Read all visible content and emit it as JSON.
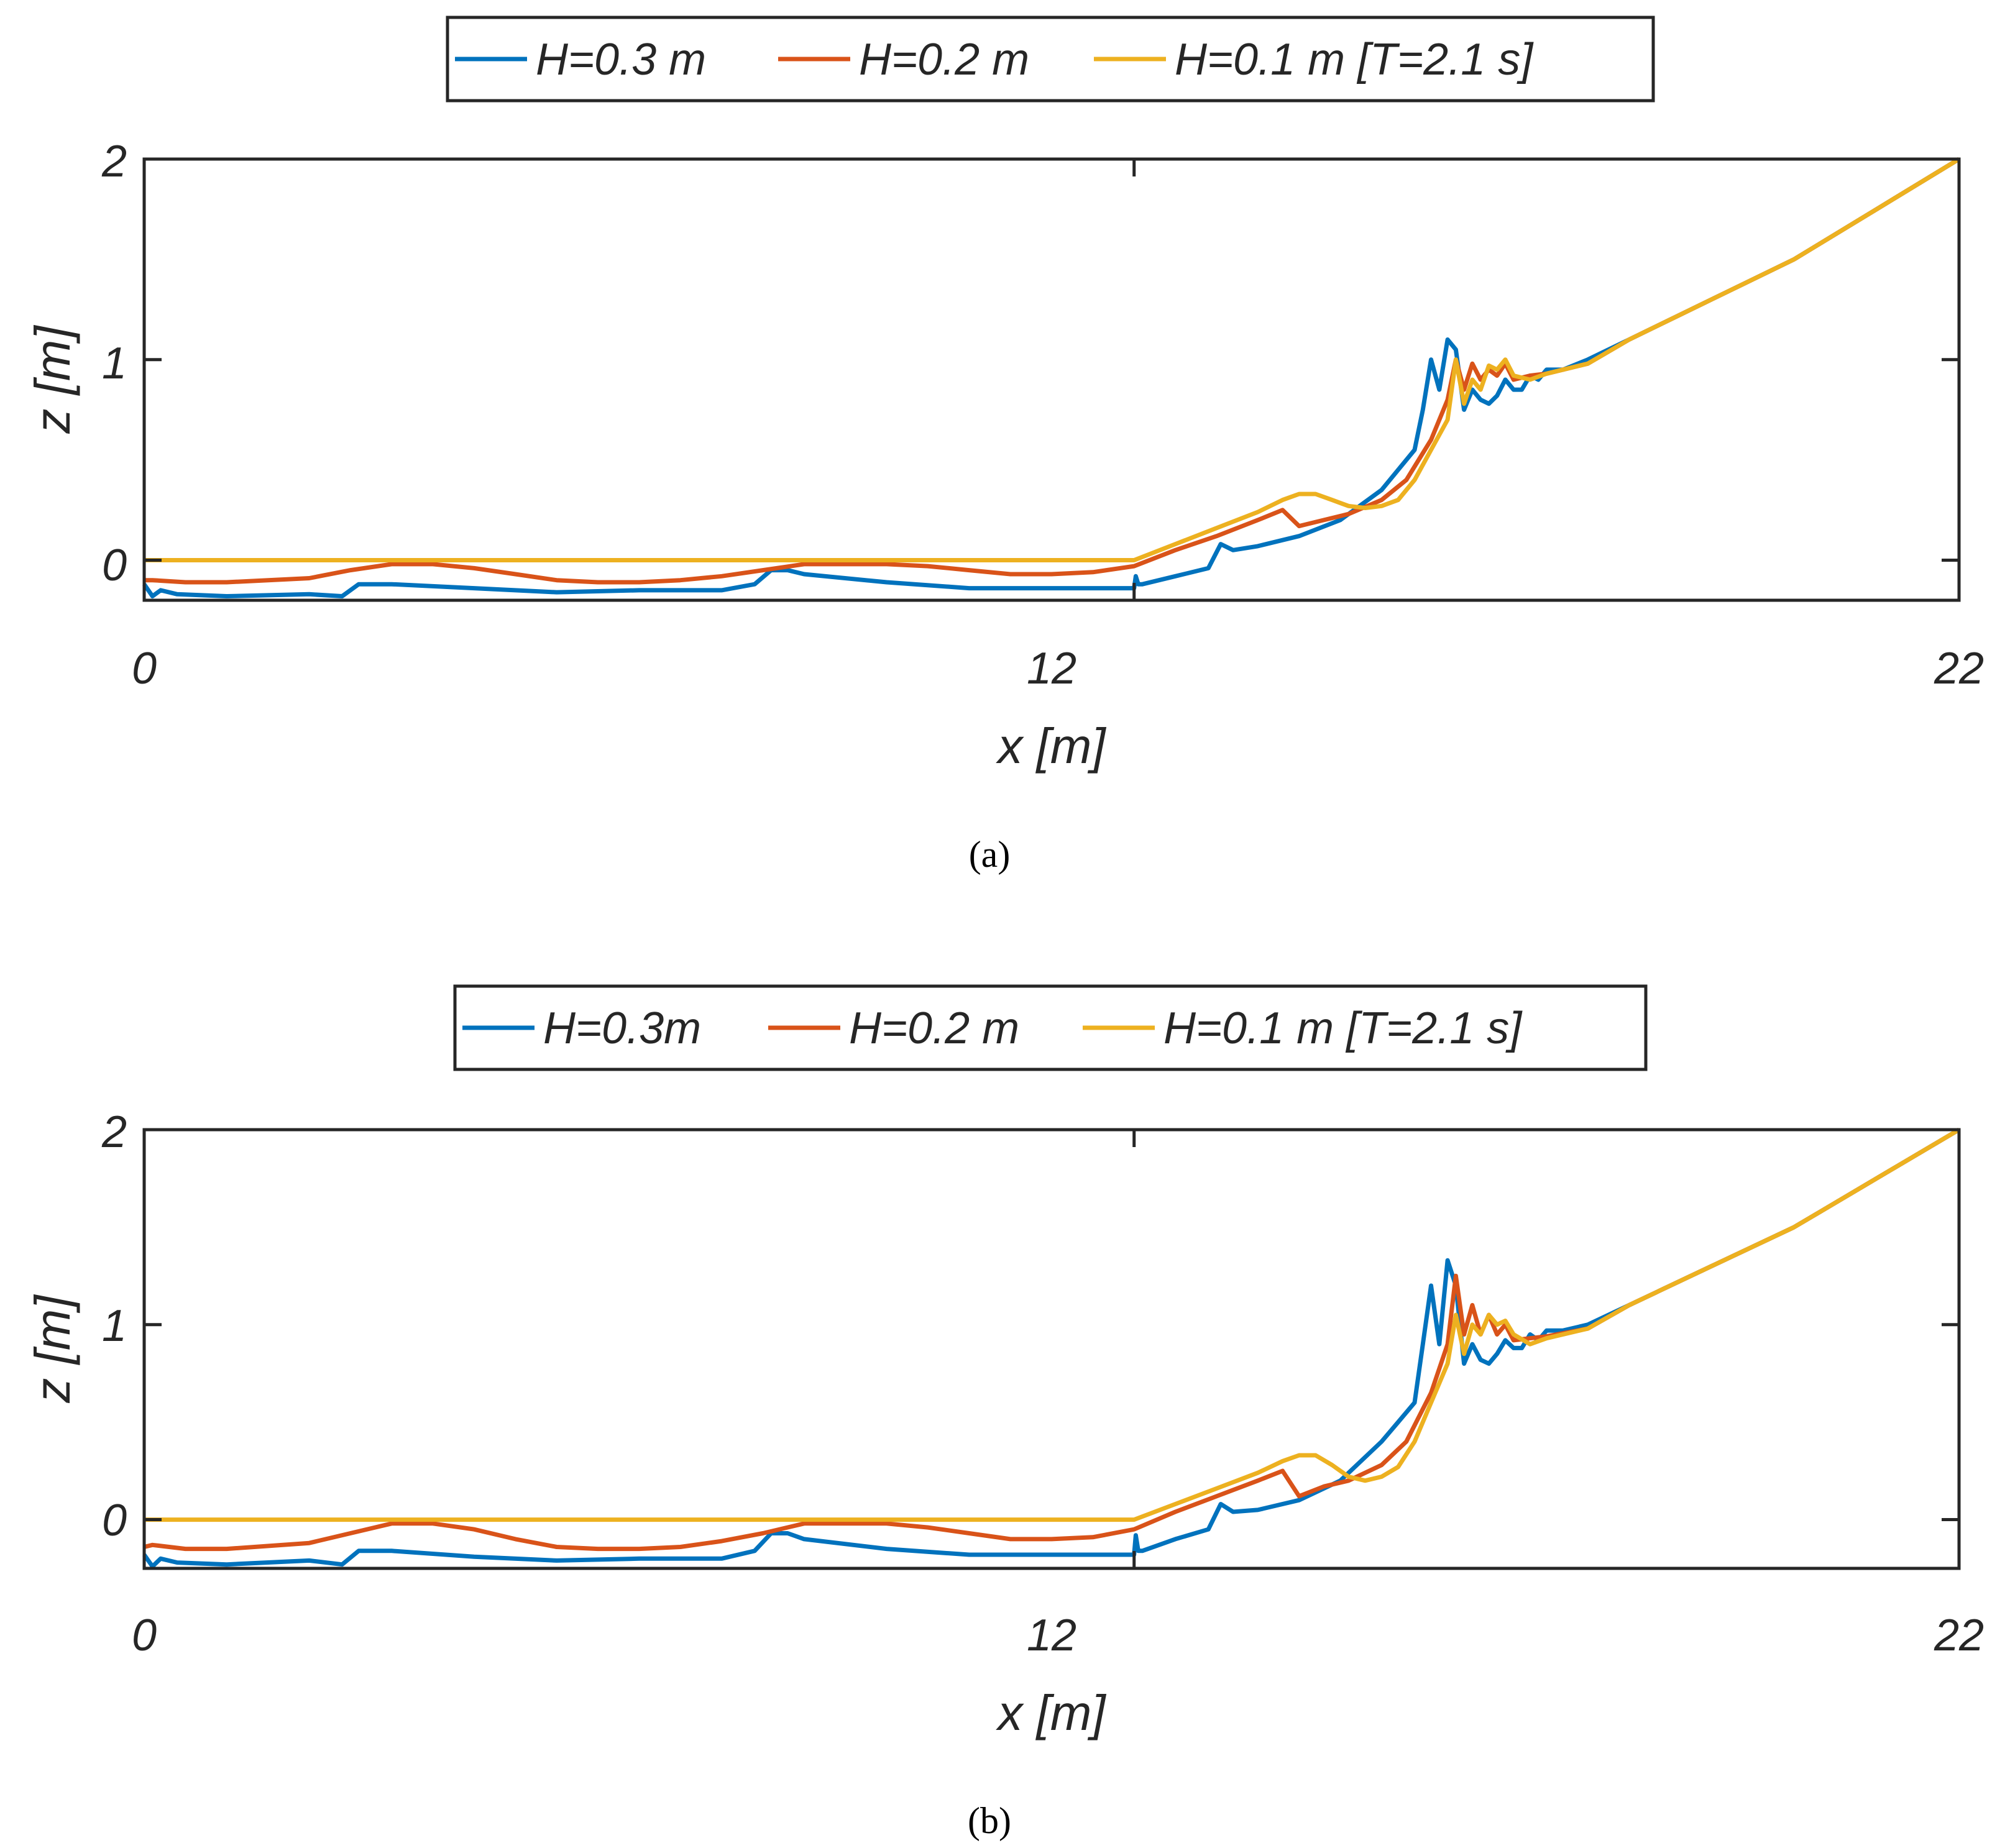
{
  "figure": {
    "colors": {
      "axes": "#262626",
      "series_1": "#0072BD",
      "series_2": "#D95319",
      "series_3": "#EDB120"
    }
  },
  "chart_data": [
    {
      "type": "line",
      "caption": "(a)",
      "xlabel": "x [m]",
      "ylabel": "z [m]",
      "xlim": [
        0,
        22
      ],
      "ylim": [
        -0.2,
        2
      ],
      "xticks": [
        0,
        12,
        22
      ],
      "yticks": [
        0,
        1,
        2
      ],
      "xtick_labels": [
        "0",
        "12",
        "22"
      ],
      "ytick_labels": [
        "0",
        "1",
        "2"
      ],
      "grid": false,
      "legend_position": "top-center",
      "series": [
        {
          "name": "H=0.3 m",
          "color": "#0072BD",
          "x": [
            0,
            0.1,
            0.2,
            0.4,
            1,
            2,
            2.4,
            2.6,
            3,
            4,
            5,
            6,
            7,
            7.4,
            7.6,
            7.8,
            8,
            9,
            10,
            11,
            12,
            12.02,
            12.05,
            12.1,
            12.5,
            12.9,
            13.05,
            13.2,
            13.5,
            14,
            14.5,
            15,
            15.2,
            15.4,
            15.5,
            15.6,
            15.7,
            15.8,
            15.9,
            16.0,
            16.1,
            16.2,
            16.3,
            16.4,
            16.5,
            16.6,
            16.7,
            16.8,
            16.9,
            17.0,
            17.2,
            17.5,
            18,
            19,
            20,
            21,
            22
          ],
          "values": [
            -0.12,
            -0.18,
            -0.15,
            -0.17,
            -0.18,
            -0.17,
            -0.18,
            -0.12,
            -0.12,
            -0.14,
            -0.16,
            -0.15,
            -0.15,
            -0.12,
            -0.05,
            -0.05,
            -0.07,
            -0.11,
            -0.14,
            -0.14,
            -0.14,
            -0.08,
            -0.12,
            -0.12,
            -0.08,
            -0.04,
            0.08,
            0.05,
            0.07,
            0.12,
            0.2,
            0.35,
            0.45,
            0.55,
            0.75,
            1.0,
            0.85,
            1.1,
            1.05,
            0.75,
            0.85,
            0.8,
            0.78,
            0.82,
            0.9,
            0.85,
            0.85,
            0.92,
            0.9,
            0.95,
            0.95,
            1.0,
            1.1,
            1.3,
            1.5,
            1.75,
            2.0
          ]
        },
        {
          "name": "H=0.2 m",
          "color": "#D95319",
          "x": [
            0,
            0.1,
            0.5,
            1,
            2,
            2.5,
            3,
            3.5,
            4,
            4.5,
            5,
            5.5,
            6,
            6.5,
            7,
            7.5,
            8,
            8.5,
            9,
            9.5,
            10,
            10.5,
            11,
            11.5,
            12,
            12.5,
            13,
            13.5,
            13.8,
            14.0,
            14.3,
            14.6,
            15.0,
            15.3,
            15.6,
            15.8,
            15.9,
            16.0,
            16.1,
            16.2,
            16.3,
            16.4,
            16.5,
            16.6,
            16.8,
            17.0,
            17.5,
            18,
            19,
            20,
            21,
            22
          ],
          "values": [
            -0.1,
            -0.1,
            -0.11,
            -0.11,
            -0.09,
            -0.05,
            -0.02,
            -0.02,
            -0.04,
            -0.07,
            -0.1,
            -0.11,
            -0.11,
            -0.1,
            -0.08,
            -0.05,
            -0.02,
            -0.02,
            -0.02,
            -0.03,
            -0.05,
            -0.07,
            -0.07,
            -0.06,
            -0.03,
            0.05,
            0.12,
            0.2,
            0.25,
            0.17,
            0.2,
            0.23,
            0.3,
            0.4,
            0.6,
            0.8,
            1.0,
            0.85,
            0.98,
            0.9,
            0.95,
            0.92,
            0.98,
            0.9,
            0.92,
            0.93,
            0.98,
            1.1,
            1.3,
            1.5,
            1.75,
            2.0
          ]
        },
        {
          "name": "H=0.1 m [T=2.1 s]",
          "color": "#EDB120",
          "x": [
            0,
            12,
            12.5,
            13,
            13.5,
            13.8,
            14.0,
            14.2,
            14.4,
            14.6,
            14.8,
            15.0,
            15.2,
            15.4,
            15.6,
            15.8,
            15.9,
            16.0,
            16.1,
            16.2,
            16.3,
            16.4,
            16.5,
            16.6,
            16.8,
            17.0,
            17.5,
            18,
            19,
            20,
            21,
            22
          ],
          "values": [
            0,
            0,
            0.08,
            0.16,
            0.24,
            0.3,
            0.33,
            0.33,
            0.3,
            0.27,
            0.26,
            0.27,
            0.3,
            0.4,
            0.55,
            0.7,
            1.0,
            0.78,
            0.9,
            0.85,
            0.97,
            0.95,
            1.0,
            0.92,
            0.9,
            0.93,
            0.98,
            1.1,
            1.3,
            1.5,
            1.75,
            2.0
          ]
        }
      ]
    },
    {
      "type": "line",
      "caption": "(b)",
      "xlabel": "x [m]",
      "ylabel": "z [m]",
      "xlim": [
        0,
        22
      ],
      "ylim": [
        -0.25,
        2
      ],
      "xticks": [
        0,
        12,
        22
      ],
      "yticks": [
        0,
        1,
        2
      ],
      "xtick_labels": [
        "0",
        "12",
        "22"
      ],
      "ytick_labels": [
        "0",
        "1",
        "2"
      ],
      "grid": false,
      "legend_position": "top-center",
      "series": [
        {
          "name": "H=0.3m",
          "color": "#0072BD",
          "x": [
            0,
            0.1,
            0.2,
            0.4,
            1,
            2,
            2.4,
            2.6,
            3,
            4,
            5,
            6,
            7,
            7.4,
            7.6,
            7.8,
            8,
            9,
            10,
            11,
            12,
            12.02,
            12.05,
            12.1,
            12.5,
            12.9,
            13.05,
            13.2,
            13.5,
            14,
            14.5,
            15,
            15.2,
            15.4,
            15.5,
            15.6,
            15.7,
            15.8,
            15.9,
            16.0,
            16.1,
            16.2,
            16.3,
            16.4,
            16.5,
            16.6,
            16.7,
            16.8,
            16.9,
            17.0,
            17.2,
            17.5,
            18,
            19,
            20,
            21,
            22
          ],
          "values": [
            -0.18,
            -0.24,
            -0.2,
            -0.22,
            -0.23,
            -0.21,
            -0.23,
            -0.16,
            -0.16,
            -0.19,
            -0.21,
            -0.2,
            -0.2,
            -0.16,
            -0.07,
            -0.07,
            -0.1,
            -0.15,
            -0.18,
            -0.18,
            -0.18,
            -0.08,
            -0.16,
            -0.16,
            -0.1,
            -0.05,
            0.08,
            0.04,
            0.05,
            0.1,
            0.2,
            0.4,
            0.5,
            0.6,
            0.9,
            1.2,
            0.9,
            1.33,
            1.2,
            0.8,
            0.9,
            0.82,
            0.8,
            0.85,
            0.92,
            0.88,
            0.88,
            0.95,
            0.92,
            0.97,
            0.97,
            1.0,
            1.1,
            1.3,
            1.5,
            1.75,
            2.0
          ]
        },
        {
          "name": "H=0.2 m",
          "color": "#D95319",
          "x": [
            0,
            0.1,
            0.5,
            1,
            2,
            2.5,
            3,
            3.5,
            4,
            4.5,
            5,
            5.5,
            6,
            6.5,
            7,
            7.5,
            8,
            8.5,
            9,
            9.5,
            10,
            10.5,
            11,
            11.5,
            12,
            12.5,
            13,
            13.5,
            13.8,
            14.0,
            14.3,
            14.6,
            15.0,
            15.3,
            15.6,
            15.8,
            15.9,
            16.0,
            16.1,
            16.2,
            16.3,
            16.4,
            16.5,
            16.6,
            16.8,
            17.0,
            17.5,
            18,
            19,
            20,
            21,
            22
          ],
          "values": [
            -0.14,
            -0.13,
            -0.15,
            -0.15,
            -0.12,
            -0.07,
            -0.02,
            -0.02,
            -0.05,
            -0.1,
            -0.14,
            -0.15,
            -0.15,
            -0.14,
            -0.11,
            -0.07,
            -0.02,
            -0.02,
            -0.02,
            -0.04,
            -0.07,
            -0.1,
            -0.1,
            -0.09,
            -0.05,
            0.04,
            0.12,
            0.2,
            0.25,
            0.12,
            0.17,
            0.2,
            0.28,
            0.4,
            0.65,
            0.9,
            1.25,
            0.95,
            1.1,
            0.95,
            1.05,
            0.95,
            1.0,
            0.92,
            0.93,
            0.94,
            0.98,
            1.1,
            1.3,
            1.5,
            1.75,
            2.0
          ]
        },
        {
          "name": "H=0.1 m [T=2.1 s]",
          "color": "#EDB120",
          "x": [
            0,
            12,
            12.5,
            13,
            13.5,
            13.8,
            14.0,
            14.2,
            14.4,
            14.6,
            14.8,
            15.0,
            15.2,
            15.4,
            15.6,
            15.8,
            15.9,
            16.0,
            16.1,
            16.2,
            16.3,
            16.4,
            16.5,
            16.6,
            16.8,
            17.0,
            17.5,
            18,
            19,
            20,
            21,
            22
          ],
          "values": [
            0,
            0,
            0.08,
            0.16,
            0.24,
            0.3,
            0.33,
            0.33,
            0.28,
            0.22,
            0.2,
            0.22,
            0.27,
            0.4,
            0.6,
            0.8,
            1.05,
            0.85,
            1.0,
            0.95,
            1.05,
            1.0,
            1.02,
            0.95,
            0.9,
            0.93,
            0.98,
            1.1,
            1.3,
            1.5,
            1.75,
            2.0
          ]
        }
      ]
    }
  ]
}
